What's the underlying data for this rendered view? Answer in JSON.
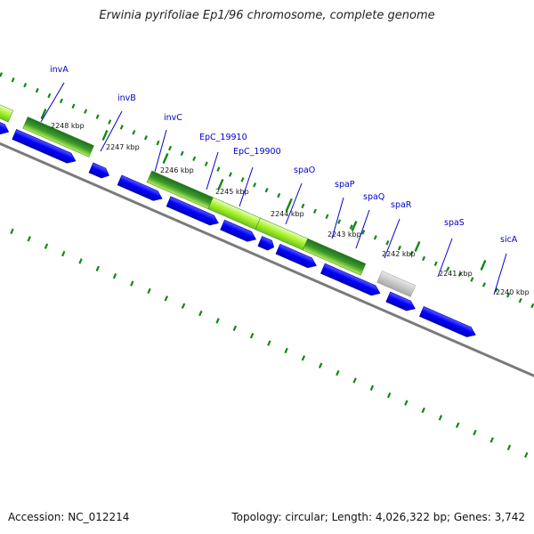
{
  "title": "Erwinia pyrifoliae Ep1/96 chromosome, complete genome",
  "footer": {
    "accession": "Accession: NC_012214",
    "summary": "Topology: circular; Length: 4,026,322 bp; Genes: 3,742"
  },
  "colors": {
    "cds": "#0000ee",
    "backbone": "#777777",
    "tick": "#0f8a0f",
    "label": "#0000cc",
    "feature_light": "#b5f53c",
    "feature_dark": "#2a8c2a",
    "feature_grey": "#b8b8b8"
  },
  "kbp_ticks": [
    "2248 kbp",
    "2247 kbp",
    "2246 kbp",
    "2245 kbp",
    "2244 kbp",
    "2243 kbp",
    "2242 kbp",
    "2241 kbp",
    "2240 kbp"
  ],
  "gene_labels": [
    "invA",
    "invB",
    "invC",
    "EpC_19910",
    "EpC_19900",
    "spaO",
    "spaP",
    "spaQ",
    "spaR",
    "spaS",
    "sicA"
  ]
}
